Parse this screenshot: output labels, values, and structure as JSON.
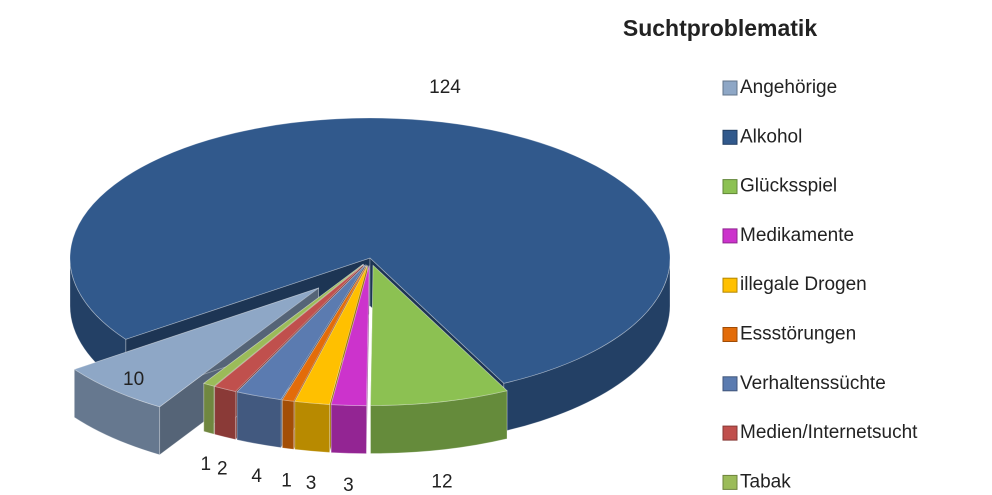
{
  "chart_data": {
    "type": "pie3d",
    "title": "Suchtproblematik",
    "categories": [
      "Angehörige",
      "Alkohol",
      "Glücksspiel",
      "Medikamente",
      "illegale Drogen",
      "Essstörungen",
      "Verhaltenssüchte",
      "Medien/Internetsucht",
      "Tabak"
    ],
    "values": [
      10,
      124,
      12,
      3,
      3,
      1,
      4,
      2,
      1
    ],
    "colors": [
      "#8ea7c6",
      "#31598c",
      "#8cc152",
      "#cc33cc",
      "#ffc000",
      "#e36c09",
      "#5b7bb0",
      "#c0504d",
      "#9bbb59"
    ],
    "legend": "right"
  }
}
